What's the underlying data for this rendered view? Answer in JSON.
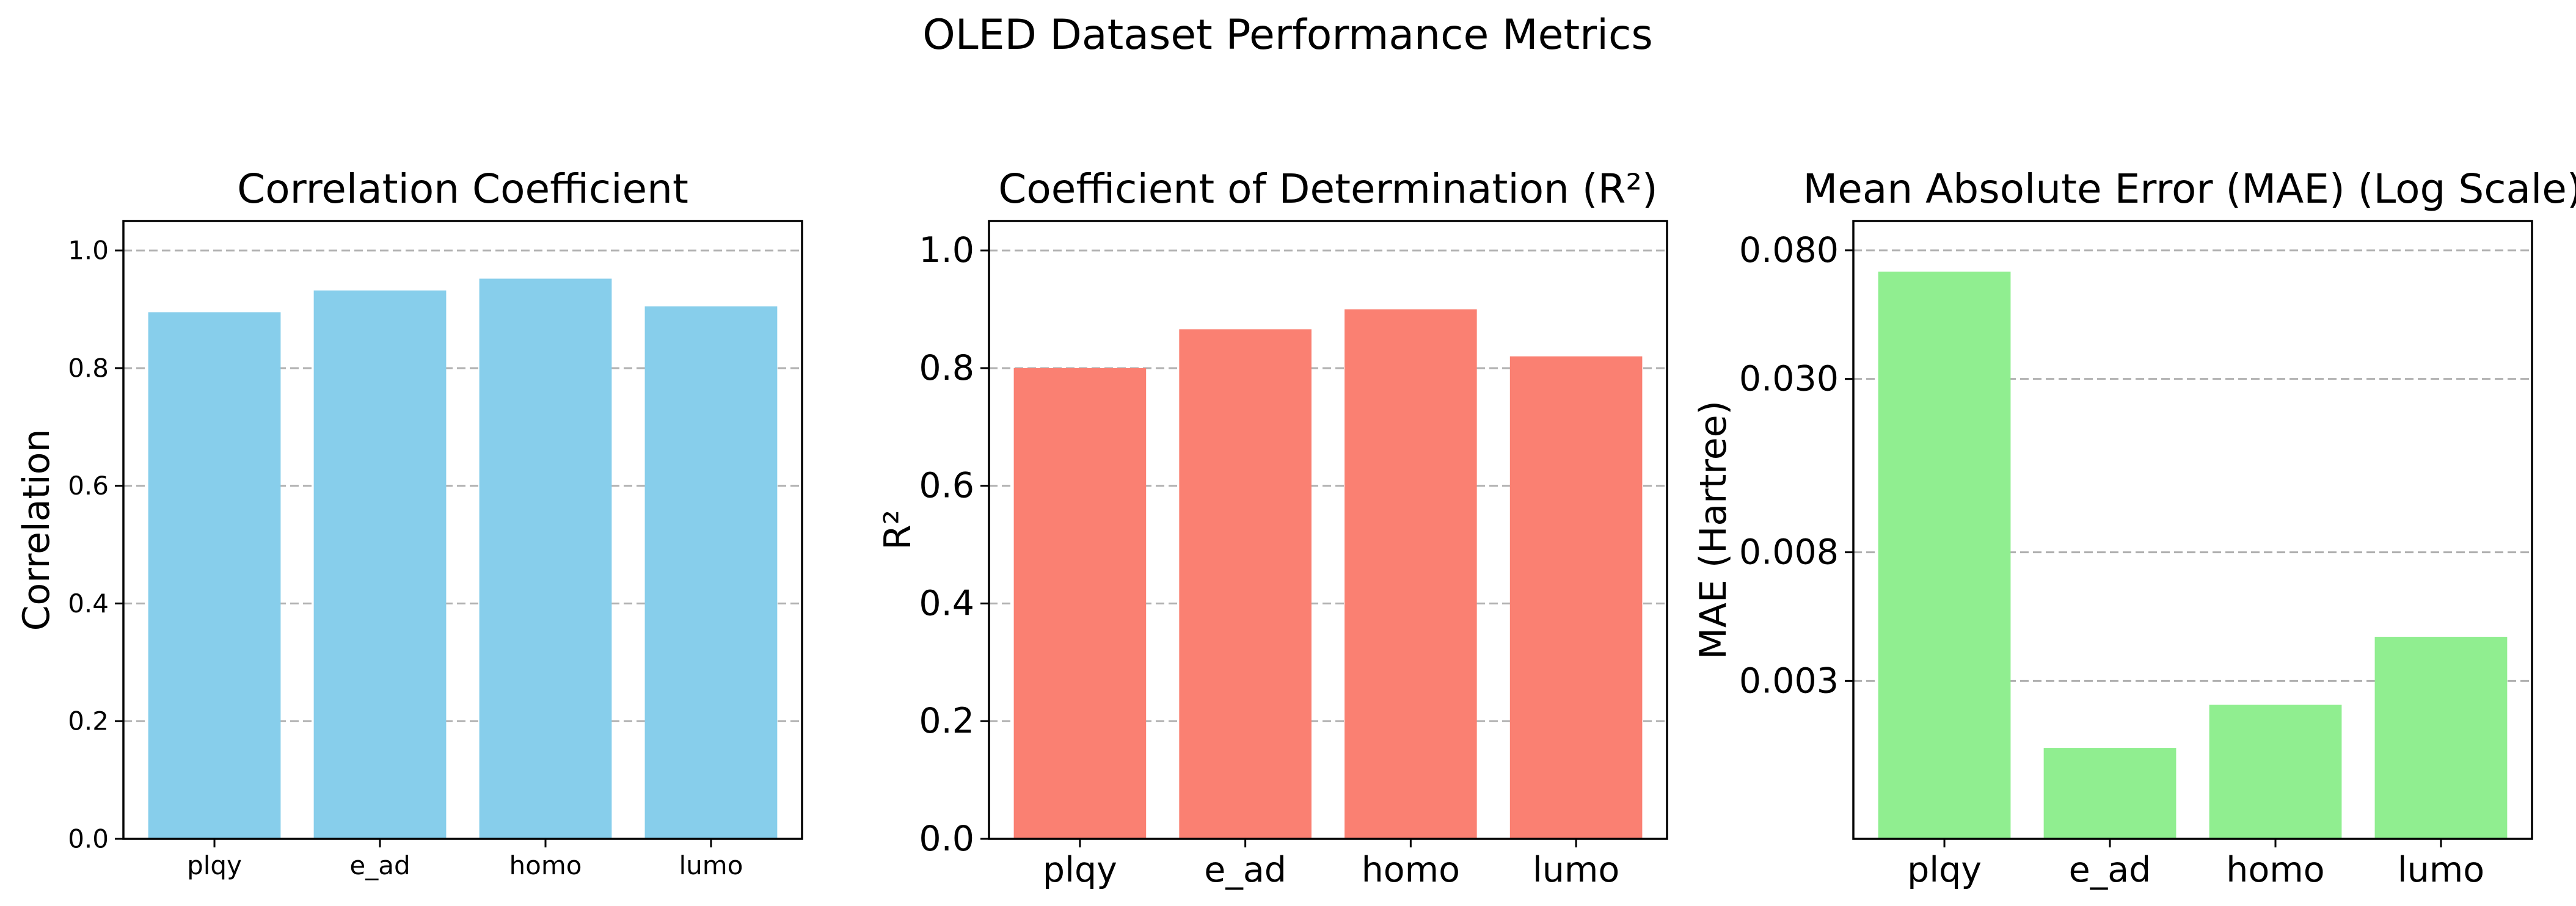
{
  "figure_title": "OLED Dataset Performance Metrics",
  "chart_data": [
    {
      "type": "bar",
      "title": "Correlation Coefficient",
      "ylabel": "Correlation",
      "categories": [
        "plqy",
        "e_ad",
        "homo",
        "lumo"
      ],
      "values": [
        0.895,
        0.932,
        0.952,
        0.905
      ],
      "ylim": [
        0,
        1.05
      ],
      "yticks": [
        0.0,
        0.2,
        0.4,
        0.6,
        0.8,
        1.0
      ],
      "ytick_labels": [
        "0.0",
        "0.2",
        "0.4",
        "0.6",
        "0.8",
        "1.0"
      ],
      "color": "#87CEEB",
      "grid": "y-dashed"
    },
    {
      "type": "bar",
      "title": "Coefficient of Determination (R²)",
      "ylabel": "R²",
      "categories": [
        "plqy",
        "e_ad",
        "homo",
        "lumo"
      ],
      "values": [
        0.8,
        0.866,
        0.9,
        0.82
      ],
      "ylim": [
        0,
        1.05
      ],
      "yticks": [
        0.0,
        0.2,
        0.4,
        0.6,
        0.8,
        1.0
      ],
      "ytick_labels": [
        "0.0",
        "0.2",
        "0.4",
        "0.6",
        "0.8",
        "1.0"
      ],
      "color": "#FA8072",
      "grid": "y-dashed"
    },
    {
      "type": "bar",
      "title": "Mean Absolute Error (MAE) (Log Scale)",
      "ylabel": "MAE (Hartree)",
      "categories": [
        "plqy",
        "e_ad",
        "homo",
        "lumo"
      ],
      "values": [
        0.068,
        0.0018,
        0.0025,
        0.0042
      ],
      "yscale": "log",
      "ylim": [
        0.0009,
        0.1
      ],
      "yticks": [
        0.003,
        0.008,
        0.03,
        0.08
      ],
      "ytick_labels": [
        "0.003",
        "0.008",
        "0.030",
        "0.080"
      ],
      "color": "#90EE90",
      "grid": "y-dashed"
    }
  ]
}
